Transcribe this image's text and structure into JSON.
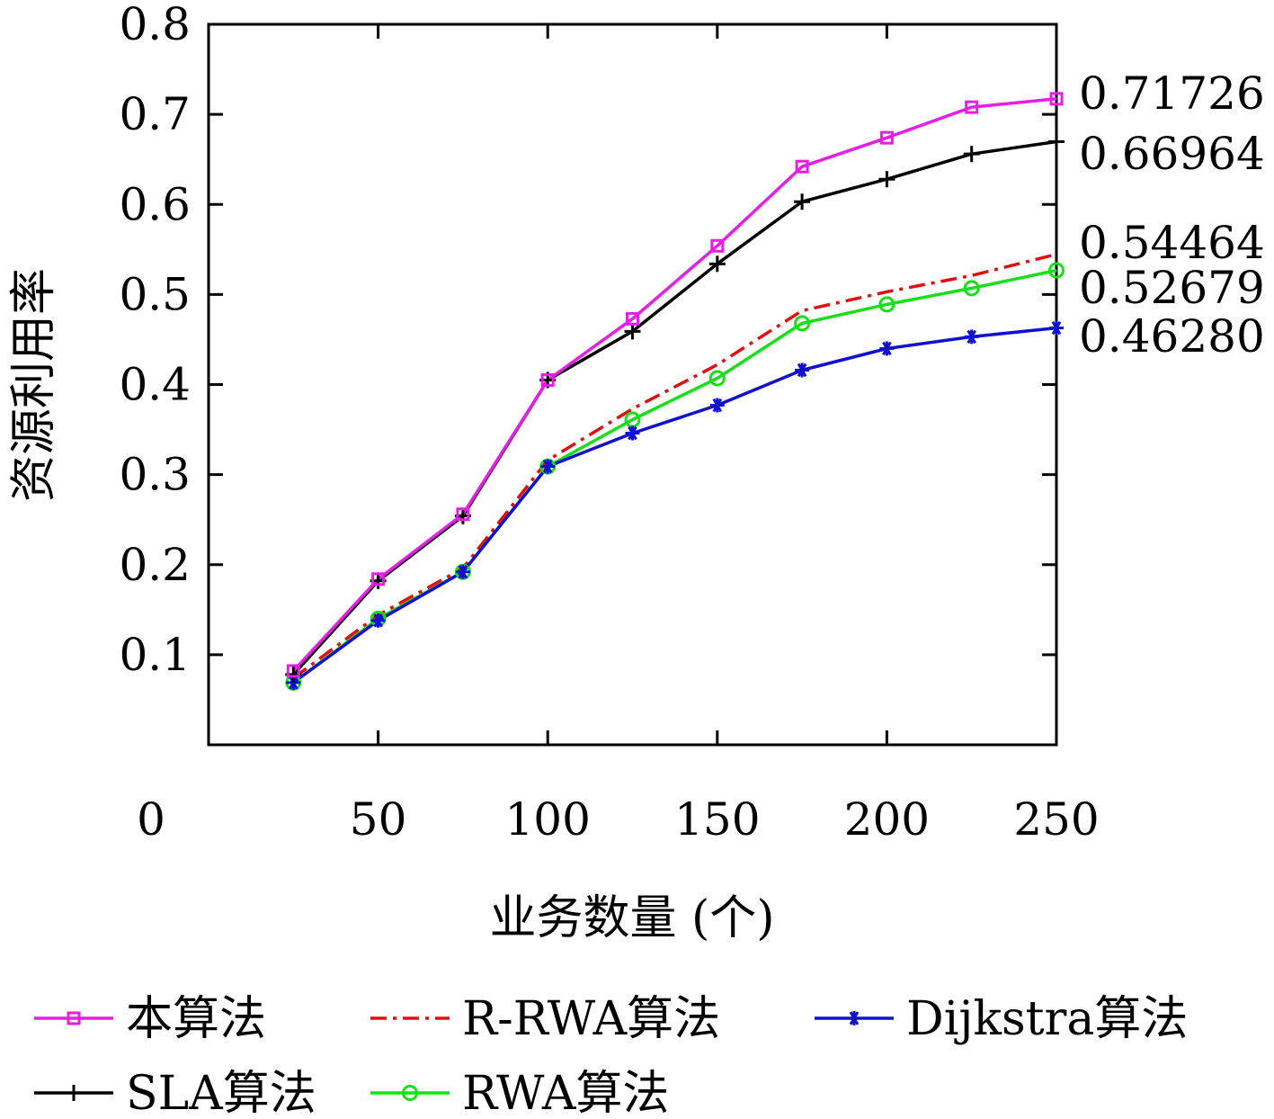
{
  "chart_data": {
    "type": "line",
    "title": "",
    "xlabel": "业务数量 (个)",
    "ylabel": "资源利用率",
    "xlim": [
      0,
      250
    ],
    "ylim": [
      0,
      0.8
    ],
    "grid": false,
    "x_ticks": [
      "0",
      "50",
      "100",
      "150",
      "200",
      "250"
    ],
    "y_ticks": [
      "0.1",
      "0.2",
      "0.3",
      "0.4",
      "0.5",
      "0.6",
      "0.7",
      "0.8"
    ],
    "x": [
      25,
      50,
      75,
      100,
      125,
      150,
      175,
      200,
      225,
      250
    ],
    "series": [
      {
        "name": "本算法",
        "color": "#e61ee6",
        "dash": "",
        "marker": "square",
        "values": [
          0.082,
          0.184,
          0.256,
          0.405,
          0.473,
          0.554,
          0.642,
          0.674,
          0.708,
          0.71726
        ]
      },
      {
        "name": "SLA算法",
        "color": "#000000",
        "dash": "",
        "marker": "plus",
        "values": [
          0.078,
          0.182,
          0.254,
          0.405,
          0.459,
          0.534,
          0.603,
          0.628,
          0.656,
          0.66964
        ]
      },
      {
        "name": "R-RWA算法",
        "color": "#e01010",
        "dash": "18,7,4,7",
        "marker": "none",
        "values": [
          0.074,
          0.144,
          0.196,
          0.316,
          0.373,
          0.422,
          0.482,
          0.503,
          0.521,
          0.54464
        ]
      },
      {
        "name": "RWA算法",
        "color": "#18e018",
        "dash": "",
        "marker": "circle",
        "values": [
          0.069,
          0.14,
          0.192,
          0.309,
          0.361,
          0.407,
          0.468,
          0.489,
          0.507,
          0.52679
        ]
      },
      {
        "name": "Dijkstra算法",
        "color": "#1010d0",
        "dash": "",
        "marker": "star",
        "values": [
          0.069,
          0.138,
          0.192,
          0.309,
          0.346,
          0.377,
          0.416,
          0.44,
          0.453,
          0.4628
        ]
      }
    ],
    "end_labels": [
      "0.71726",
      "0.66964",
      "0.54464",
      "0.52679",
      "0.46280"
    ],
    "legend": {
      "position": "bottom",
      "entries": [
        "本算法",
        "R-RWA算法",
        "Dijkstra算法",
        "SLA算法",
        "RWA算法"
      ]
    }
  }
}
